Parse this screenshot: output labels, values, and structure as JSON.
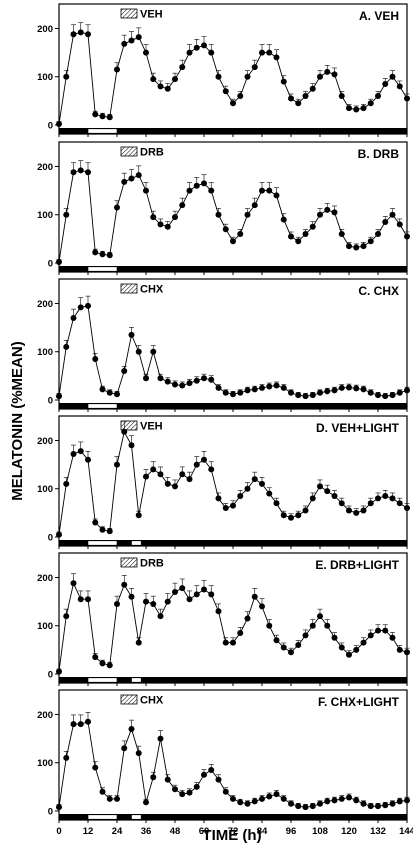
{
  "figure": {
    "ylabel": "MELATONIN (%MEAN)",
    "xlabel": "TIME (h)"
  },
  "chart_data": [
    {
      "type": "line",
      "title": "A. VEH",
      "legend": "VEH",
      "xlim": [
        0,
        144
      ],
      "ylim": [
        0,
        230
      ],
      "yticks": [
        0,
        100,
        200
      ],
      "light_bars": [
        [
          12,
          24
        ]
      ],
      "series": [
        {
          "x": [
            0,
            3,
            6,
            9,
            12,
            15,
            18,
            21,
            24,
            27,
            30,
            33,
            36,
            39,
            42,
            45,
            48,
            51,
            54,
            57,
            60,
            63,
            66,
            69,
            72,
            75,
            78,
            81,
            84,
            87,
            90,
            93,
            96,
            99,
            102,
            105,
            108,
            111,
            114,
            117,
            120,
            123,
            126,
            129,
            132,
            135,
            138,
            141,
            144
          ],
          "y": [
            2,
            100,
            188,
            192,
            188,
            22,
            18,
            16,
            115,
            168,
            175,
            182,
            150,
            95,
            80,
            75,
            95,
            120,
            150,
            160,
            165,
            150,
            100,
            70,
            45,
            60,
            100,
            120,
            150,
            150,
            140,
            90,
            55,
            45,
            60,
            75,
            100,
            110,
            105,
            60,
            35,
            32,
            35,
            45,
            60,
            85,
            100,
            80,
            55
          ]
        }
      ]
    },
    {
      "type": "line",
      "title": "B. DRB",
      "legend": "DRB",
      "xlim": [
        0,
        144
      ],
      "ylim": [
        0,
        230
      ],
      "yticks": [
        0,
        100,
        200
      ],
      "light_bars": [
        [
          12,
          24
        ]
      ],
      "series": [
        {
          "x": [
            0,
            3,
            6,
            9,
            12,
            15,
            18,
            21,
            24,
            27,
            30,
            33,
            36,
            39,
            42,
            45,
            48,
            51,
            54,
            57,
            60,
            63,
            66,
            69,
            72,
            75,
            78,
            81,
            84,
            87,
            90,
            93,
            96,
            99,
            102,
            105,
            108,
            111,
            114,
            117,
            120,
            123,
            126,
            129,
            132,
            135,
            138,
            141,
            144
          ],
          "y": [
            2,
            100,
            188,
            192,
            188,
            22,
            18,
            16,
            115,
            168,
            175,
            182,
            150,
            95,
            80,
            75,
            95,
            120,
            150,
            160,
            165,
            150,
            100,
            70,
            45,
            60,
            100,
            120,
            150,
            150,
            140,
            90,
            55,
            45,
            60,
            75,
            100,
            110,
            105,
            60,
            35,
            32,
            35,
            45,
            60,
            85,
            100,
            80,
            55
          ]
        }
      ]
    },
    {
      "type": "line",
      "title": "C. CHX",
      "legend": "CHX",
      "xlim": [
        0,
        144
      ],
      "ylim": [
        0,
        230
      ],
      "yticks": [
        0,
        100,
        200
      ],
      "light_bars": [
        [
          12,
          24
        ]
      ],
      "series": [
        {
          "x": [
            0,
            3,
            6,
            9,
            12,
            15,
            18,
            21,
            24,
            27,
            30,
            33,
            36,
            39,
            42,
            45,
            48,
            51,
            54,
            57,
            60,
            63,
            66,
            69,
            72,
            75,
            78,
            81,
            84,
            87,
            90,
            93,
            96,
            99,
            102,
            105,
            108,
            111,
            114,
            117,
            120,
            123,
            126,
            129,
            132,
            135,
            138,
            141,
            144
          ],
          "y": [
            8,
            110,
            170,
            192,
            195,
            85,
            22,
            15,
            12,
            60,
            135,
            100,
            45,
            100,
            45,
            38,
            32,
            30,
            35,
            40,
            45,
            42,
            25,
            15,
            12,
            15,
            20,
            22,
            25,
            28,
            30,
            25,
            15,
            10,
            8,
            10,
            15,
            18,
            20,
            25,
            26,
            24,
            22,
            15,
            10,
            8,
            10,
            15,
            20
          ]
        }
      ]
    },
    {
      "type": "line",
      "title": "D. VEH+LIGHT",
      "legend": "VEH",
      "xlim": [
        0,
        144
      ],
      "ylim": [
        0,
        230
      ],
      "yticks": [
        0,
        100,
        200
      ],
      "light_bars": [
        [
          12,
          24
        ],
        [
          30,
          34
        ]
      ],
      "series": [
        {
          "x": [
            0,
            3,
            6,
            9,
            12,
            15,
            18,
            21,
            24,
            27,
            30,
            33,
            36,
            39,
            42,
            45,
            48,
            51,
            54,
            57,
            60,
            63,
            66,
            69,
            72,
            75,
            78,
            81,
            84,
            87,
            90,
            93,
            96,
            99,
            102,
            105,
            108,
            111,
            114,
            117,
            120,
            123,
            126,
            129,
            132,
            135,
            138,
            141,
            144
          ],
          "y": [
            5,
            110,
            172,
            178,
            160,
            30,
            15,
            12,
            150,
            218,
            190,
            45,
            125,
            140,
            130,
            110,
            105,
            130,
            120,
            150,
            160,
            140,
            80,
            60,
            65,
            85,
            100,
            120,
            110,
            90,
            70,
            45,
            40,
            45,
            55,
            80,
            105,
            95,
            85,
            70,
            55,
            50,
            55,
            70,
            80,
            85,
            80,
            70,
            60
          ]
        }
      ]
    },
    {
      "type": "line",
      "title": "E. DRB+LIGHT",
      "legend": "DRB",
      "xlim": [
        0,
        144
      ],
      "ylim": [
        0,
        230
      ],
      "yticks": [
        0,
        100,
        200
      ],
      "light_bars": [
        [
          12,
          24
        ],
        [
          30,
          34
        ]
      ],
      "series": [
        {
          "x": [
            0,
            3,
            6,
            9,
            12,
            15,
            18,
            21,
            24,
            27,
            30,
            33,
            36,
            39,
            42,
            45,
            48,
            51,
            54,
            57,
            60,
            63,
            66,
            69,
            72,
            75,
            78,
            81,
            84,
            87,
            90,
            93,
            96,
            99,
            102,
            105,
            108,
            111,
            114,
            117,
            120,
            123,
            126,
            129,
            132,
            135,
            138,
            141,
            144
          ],
          "y": [
            5,
            120,
            188,
            155,
            155,
            35,
            22,
            18,
            145,
            185,
            160,
            65,
            150,
            145,
            120,
            150,
            170,
            178,
            155,
            165,
            175,
            165,
            130,
            65,
            65,
            85,
            115,
            160,
            140,
            100,
            70,
            55,
            45,
            60,
            80,
            100,
            120,
            100,
            75,
            55,
            40,
            50,
            65,
            80,
            90,
            90,
            75,
            50,
            45
          ]
        }
      ]
    },
    {
      "type": "line",
      "title": "F. CHX+LIGHT",
      "legend": "CHX",
      "xlim": [
        0,
        144
      ],
      "ylim": [
        0,
        230
      ],
      "yticks": [
        0,
        100,
        200
      ],
      "light_bars": [
        [
          12,
          24
        ],
        [
          30,
          34
        ]
      ],
      "series": [
        {
          "x": [
            0,
            3,
            6,
            9,
            12,
            15,
            18,
            21,
            24,
            27,
            30,
            33,
            36,
            39,
            42,
            45,
            48,
            51,
            54,
            57,
            60,
            63,
            66,
            69,
            72,
            75,
            78,
            81,
            84,
            87,
            90,
            93,
            96,
            99,
            102,
            105,
            108,
            111,
            114,
            117,
            120,
            123,
            126,
            129,
            132,
            135,
            138,
            141,
            144
          ],
          "y": [
            8,
            110,
            180,
            180,
            185,
            90,
            40,
            25,
            25,
            130,
            170,
            120,
            18,
            70,
            150,
            65,
            45,
            35,
            38,
            50,
            75,
            85,
            65,
            40,
            25,
            18,
            15,
            20,
            25,
            30,
            35,
            25,
            15,
            10,
            8,
            10,
            15,
            20,
            22,
            25,
            28,
            22,
            15,
            10,
            10,
            12,
            15,
            20,
            22
          ]
        }
      ]
    }
  ]
}
